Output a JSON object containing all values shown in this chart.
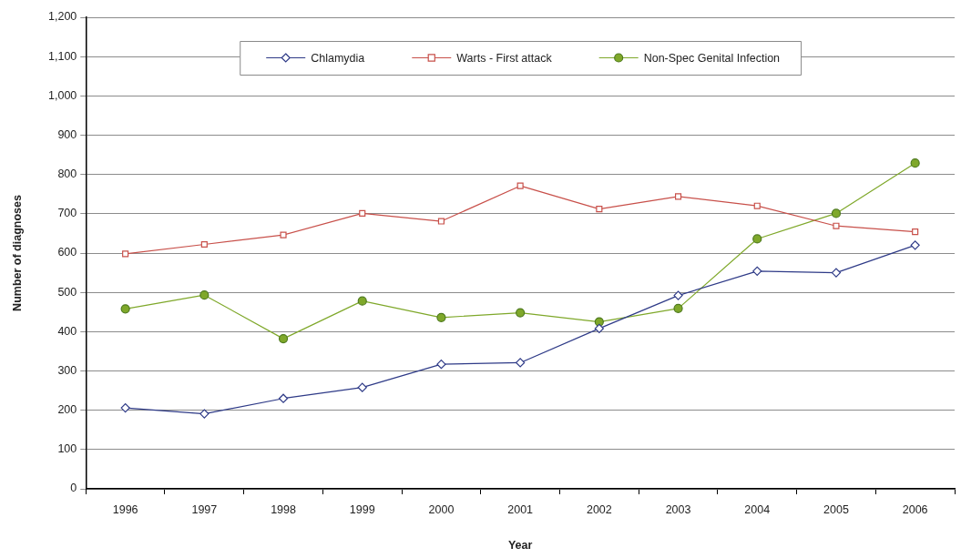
{
  "chart_data": {
    "type": "line",
    "xlabel": "Year",
    "ylabel": "Number of diagnoses",
    "categories": [
      "1996",
      "1997",
      "1998",
      "1999",
      "2000",
      "2001",
      "2002",
      "2003",
      "2004",
      "2005",
      "2006"
    ],
    "series": [
      {
        "name": "Chlamydia",
        "color": "#2E3A87",
        "marker": "diamond",
        "values": [
          206,
          191,
          230,
          258,
          317,
          321,
          408,
          492,
          554,
          550,
          620
        ]
      },
      {
        "name": "Warts - First attack",
        "color": "#C8504A",
        "marker": "square",
        "values": [
          598,
          622,
          646,
          701,
          681,
          771,
          712,
          744,
          720,
          669,
          654
        ]
      },
      {
        "name": "Non-Spec Genital Infection",
        "color": "#7FA82A",
        "marker": "circle",
        "values": [
          458,
          493,
          382,
          478,
          436,
          448,
          425,
          459,
          636,
          701,
          829
        ]
      }
    ],
    "ylim": [
      0,
      1200
    ],
    "yticks": [
      0,
      100,
      200,
      300,
      400,
      500,
      600,
      700,
      800,
      900,
      {
        "value": 1000,
        "label": "1,000"
      },
      {
        "value": 1100,
        "label": "1,100"
      },
      {
        "value": 1200,
        "label": "1,200"
      }
    ],
    "grid": "y",
    "legend": "top"
  }
}
